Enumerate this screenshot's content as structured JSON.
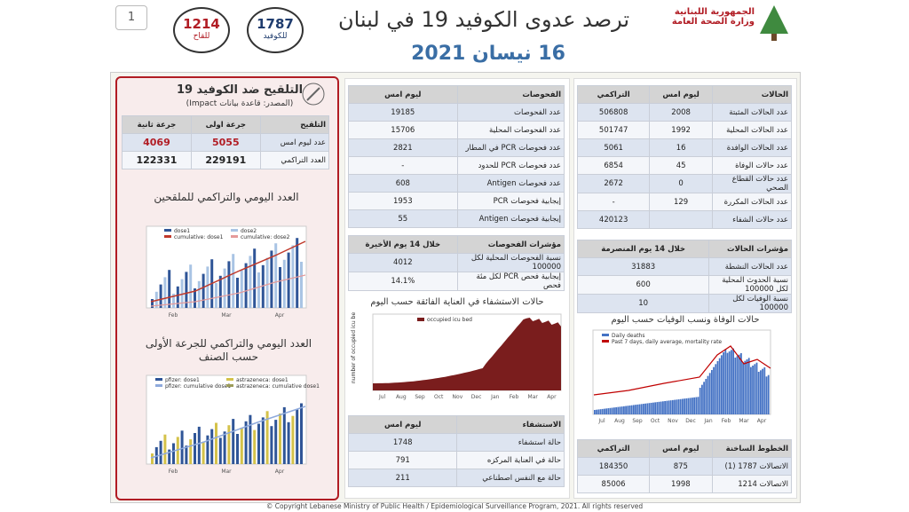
{
  "header": {
    "page_number": "1",
    "title": "ترصد عدوى الكوفيد 19 في لبنان",
    "date": "16 نيسان 2021",
    "ministry": [
      "الجمهورية اللبنانية",
      "وزارة الصحة العامة"
    ],
    "hotlines": [
      {
        "number": "1787",
        "label": "للكوفيد"
      },
      {
        "number": "1214",
        "label": "للقاح"
      }
    ]
  },
  "cases": {
    "headers": [
      "الحالات",
      "ليوم امس",
      "التراكمي"
    ],
    "rows": [
      {
        "label": "عدد الحالات المثبتة",
        "values": [
          2008,
          506808
        ]
      },
      {
        "label": "عدد الحالات المحلية",
        "values": [
          1992,
          501747
        ]
      },
      {
        "label": "عدد الحالات الوافدة",
        "values": [
          16,
          5061
        ]
      },
      {
        "label": "عدد حالات الوفاة",
        "values": [
          45,
          6854
        ]
      },
      {
        "label": "عدد حالات القطاع الصحي",
        "values": [
          0,
          2672
        ]
      },
      {
        "label": "عدد الحالات المكررة",
        "values": [
          129,
          "-"
        ]
      },
      {
        "label": "عدد حالات الشفاء",
        "values": [
          null,
          420123
        ]
      }
    ]
  },
  "case_indicators": {
    "headers": [
      "مؤشرات الحالات",
      "خلال 14 يوم المنصرمة"
    ],
    "rows": [
      {
        "label": "عدد الحالات النشطة",
        "values": [
          31883
        ]
      },
      {
        "label": "نسبة الحدوث المحلية لكل 100000",
        "values": [
          600
        ]
      },
      {
        "label": "نسبة الوفيات لكل 100000",
        "values": [
          10
        ]
      }
    ]
  },
  "deaths_chart": {
    "title": "حالات الوفاة ونسب الوفيات حسب اليوم",
    "legend": [
      "Daily deaths",
      "Past 7 days, daily average, mortality rate"
    ],
    "months": [
      "Jul",
      "Aug",
      "Sep",
      "Oct",
      "Nov",
      "Dec",
      "Jan",
      "Feb",
      "Mar",
      "Apr"
    ]
  },
  "hotlines_table": {
    "headers": [
      "الخطوط الساخنة",
      "ليوم امس",
      "التراكمي"
    ],
    "rows": [
      {
        "label": "الاتصالات 1787 (1)",
        "values": [
          875,
          184350
        ]
      },
      {
        "label": "الاتصالات 1214",
        "values": [
          1998,
          85006
        ]
      }
    ]
  },
  "tests": {
    "headers": [
      "الفحوصات",
      "ليوم امس"
    ],
    "rows": [
      {
        "label": "عدد الفحوصات",
        "values": [
          19185
        ]
      },
      {
        "label": "عدد الفحوصات المحلية",
        "values": [
          15706
        ]
      },
      {
        "label": "عدد فحوصات PCR في المطار",
        "values": [
          2821
        ]
      },
      {
        "label": "عدد فحوصات PCR للحدود",
        "values": [
          "-"
        ]
      },
      {
        "label": "عدد فحوصات Antigen",
        "values": [
          608
        ]
      },
      {
        "label": "إيجابية فحوصات PCR",
        "values": [
          1953
        ]
      },
      {
        "label": "إيجابية فحوصات Antigen",
        "values": [
          55
        ]
      }
    ]
  },
  "test_indicators": {
    "headers": [
      "مؤشرات الفحوصات",
      "خلال 14 يوم الأخيرة"
    ],
    "rows": [
      {
        "label": "نسبة الفحوصات المحلية لكل 100000",
        "values": [
          4012
        ]
      },
      {
        "label": "إيجابية فحص PCR لكل مئة فحص",
        "values": [
          "14.1%"
        ]
      }
    ]
  },
  "icu_chart": {
    "title": "حالات الاستشفاء في العناية الفائقة حسب اليوم",
    "legend": [
      "occupied icu bed"
    ],
    "y_label": "number of occupied icu beds",
    "months": [
      "Jul",
      "Aug",
      "Sep",
      "Oct",
      "Nov",
      "Dec",
      "Jan",
      "Feb",
      "Mar",
      "Apr"
    ]
  },
  "hospital": {
    "headers": [
      "الاستشفاء",
      "ليوم امس"
    ],
    "rows": [
      {
        "label": "حالة استشفاء",
        "values": [
          1748
        ]
      },
      {
        "label": "حالة في العناية المركزه",
        "values": [
          791
        ]
      },
      {
        "label": "حالة مع النفس اصطناعي",
        "values": [
          211
        ]
      }
    ]
  },
  "vaccination": {
    "title": "التلقيح ضد الكوفيد 19",
    "source": "(المصدر: قاعدة بيانات Impact)",
    "headers": [
      "التلقيح",
      "جرعة اولى",
      "جرعة ثانية"
    ],
    "rows": [
      {
        "label": "عدد ليوم امس",
        "values": [
          5055,
          4069
        ]
      },
      {
        "label": "العدد التراكمي",
        "values": [
          229191,
          122331
        ]
      }
    ],
    "chart1_title": "العدد اليومي والتراكمي للملقحين",
    "chart1_legend": [
      "dose1",
      "dose2",
      "cumulative: dose1",
      "cumulative: dose2"
    ],
    "chart2_title": "العدد اليومي والتراكمي للجرعة الأولى حسب الصنف",
    "chart2_legend": [
      "pfizer: dose1",
      "astrazeneca: dose1",
      "pfizer: cumulative dose1",
      "astrazeneca: cumulative dose1"
    ],
    "months": [
      "Feb",
      "Mar",
      "Apr"
    ]
  },
  "footer": "© Copyright Lebanese Ministry of Public Health / Epidemiological Surveillance Program, 2021. All rights reserved"
}
